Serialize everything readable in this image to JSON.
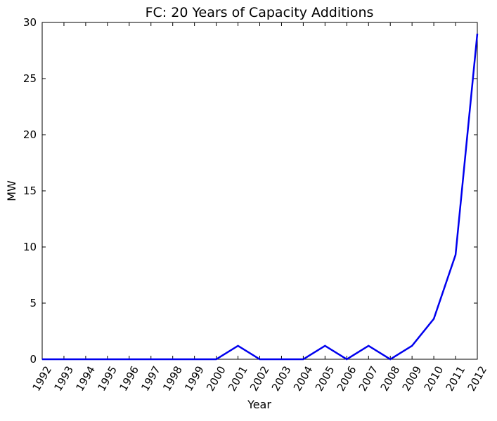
{
  "chart_data": {
    "type": "line",
    "title": "FC: 20 Years of Capacity Additions",
    "xlabel": "Year",
    "ylabel": "MW",
    "x": [
      "1992",
      "1993",
      "1994",
      "1995",
      "1996",
      "1997",
      "1998",
      "1999",
      "2000",
      "2001",
      "2002",
      "2003",
      "2004",
      "2005",
      "2006",
      "2007",
      "2008",
      "2009",
      "2010",
      "2011",
      "2012"
    ],
    "series": [
      {
        "values": [
          0,
          0,
          0,
          0,
          0,
          0,
          0,
          0,
          0,
          1.2,
          0,
          0,
          0,
          1.2,
          0,
          1.2,
          0,
          1.2,
          3.6,
          9.3,
          29
        ],
        "color": "#0000ee"
      }
    ],
    "ylim": [
      0,
      30
    ],
    "yticks": [
      "0",
      "5",
      "10",
      "15",
      "20",
      "25",
      "30"
    ],
    "xtick_rotation_deg": 60,
    "grid": false,
    "legend": "none"
  }
}
